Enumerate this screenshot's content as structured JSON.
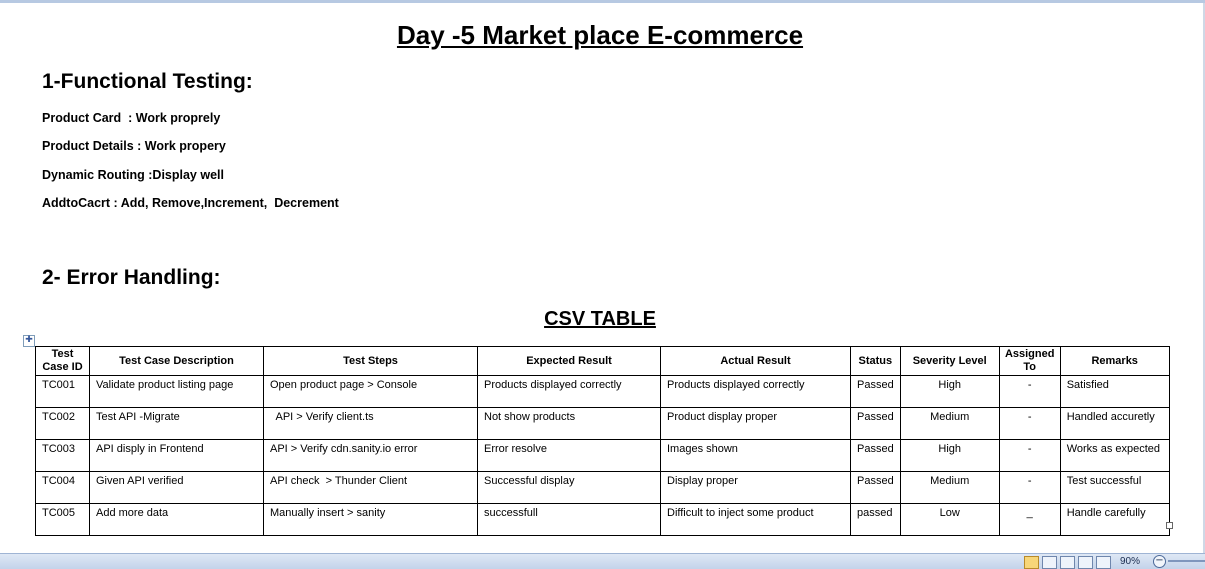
{
  "document": {
    "title": "Day -5 Market place E-commerce",
    "section1": {
      "heading": "1-Functional Testing:",
      "lines": [
        "Product Card  : Work proprely",
        "Product Details : Work propery",
        "Dynamic Routing :Display well",
        "AddtoCacrt : Add, Remove,Increment,  Decrement"
      ]
    },
    "section2": {
      "heading": "2- Error Handling:"
    },
    "table_title": "CSV TABLE",
    "table": {
      "headers": [
        "Test Case ID",
        "Test Case Description",
        "Test Steps",
        "Expected Result",
        "Actual Result",
        "Status",
        "Severity Level",
        "Assigned To",
        "Remarks"
      ],
      "rows": [
        [
          "TC001",
          "Validate product listing page",
          "Open product page > Console",
          "Products displayed correctly",
          "Products displayed correctly",
          "Passed",
          "High",
          "-",
          "Satisfied"
        ],
        [
          "TC002",
          "Test API -Migrate",
          "  API > Verify client.ts",
          "Not show products",
          "Product display proper",
          "Passed",
          "Medium",
          "-",
          "Handled accuretly"
        ],
        [
          "TC003",
          "API disply in Frontend",
          "API > Verify cdn.sanity.io error",
          "Error resolve",
          "Images shown",
          "Passed",
          "High",
          "-",
          "Works as expected"
        ],
        [
          "TC004",
          "Given API verified",
          "API check  > Thunder Client",
          "Successful display",
          "Display proper",
          "Passed",
          "Medium",
          "-",
          "Test successful"
        ],
        [
          "TC005",
          "Add more data",
          "Manually insert > sanity",
          "successfull",
          "Difficult to inject some product",
          "passed",
          "Low",
          "_",
          "Handle carefully"
        ]
      ]
    }
  },
  "statusbar": {
    "zoom": "90%"
  },
  "icons": {
    "table_move": "move-cross-icon",
    "zoom_out": "minus-icon"
  }
}
